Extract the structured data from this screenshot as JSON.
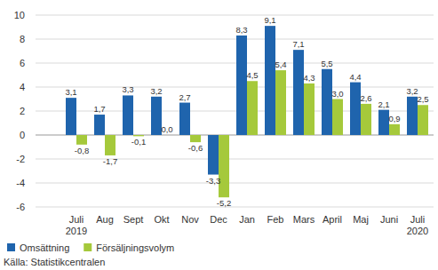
{
  "chart_data": {
    "type": "bar",
    "categories": [
      "Juli\n2019",
      "Aug",
      "Sept",
      "Okt",
      "Nov",
      "Dec",
      "Jan",
      "Feb",
      "Mars",
      "April",
      "Maj",
      "Juni",
      "Juli\n2020"
    ],
    "series": [
      {
        "name": "Omsättning",
        "color": "#1f64ad",
        "values": [
          3.1,
          1.7,
          3.3,
          3.2,
          2.7,
          -3.3,
          8.3,
          9.1,
          7.1,
          5.5,
          4.4,
          2.1,
          3.2
        ],
        "value_labels": [
          "3,1",
          "1,7",
          "3,3",
          "3,2",
          "2,7",
          "-3,3",
          "8,3",
          "9,1",
          "7,1",
          "5,5",
          "4,4",
          "2,1",
          "3,2"
        ]
      },
      {
        "name": "Försäljningsvolym",
        "color": "#a5c93b",
        "values": [
          -0.8,
          -1.7,
          -0.1,
          0.0,
          -0.6,
          -5.2,
          4.5,
          5.4,
          4.3,
          3.0,
          2.6,
          0.9,
          2.5
        ],
        "value_labels": [
          "-0,8",
          "-1,7",
          "-0,1",
          "0,0",
          "-0,6",
          "-5,2",
          "4,5",
          "5,4",
          "4,3",
          "3,0",
          "2,6",
          "0,9",
          "2,5"
        ]
      }
    ],
    "ylim": [
      -6,
      10
    ],
    "yticks": [
      -6,
      -4,
      -2,
      0,
      2,
      4,
      6,
      8,
      10
    ],
    "grid": true,
    "data_labels": true,
    "legend": "bottom",
    "source": "Källa: Statistikcentralen"
  }
}
